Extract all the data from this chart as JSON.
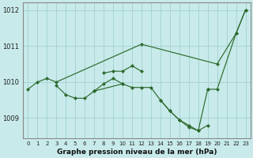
{
  "title": "Graphe pression niveau de la mer (hPa)",
  "bg_color": "#c8eaea",
  "line_color": "#2d6a2d",
  "grid_color": "#a8d4d4",
  "axis_color": "#888888",
  "xlim": [
    -0.5,
    23.5
  ],
  "ylim": [
    1008.45,
    1012.2
  ],
  "yticks": [
    1009,
    1010,
    1011,
    1012
  ],
  "xticks": [
    0,
    1,
    2,
    3,
    4,
    5,
    6,
    7,
    8,
    9,
    10,
    11,
    12,
    13,
    14,
    15,
    16,
    17,
    18,
    19,
    20,
    21,
    22,
    23
  ],
  "line1_x": [
    0,
    1,
    2,
    3,
    12,
    20,
    22,
    23
  ],
  "line1_y": [
    1009.8,
    1010.0,
    1010.1,
    1010.0,
    1011.05,
    1010.5,
    1011.35,
    1012.0
  ],
  "line2_x": [
    3,
    4,
    5,
    6,
    7,
    10,
    11,
    12,
    13,
    14,
    15,
    16,
    17,
    18,
    19
  ],
  "line2_y": [
    1009.9,
    1009.65,
    1009.55,
    1009.55,
    1009.75,
    1009.95,
    1009.85,
    1009.85,
    1009.85,
    1009.5,
    1009.2,
    1008.95,
    1008.8,
    1008.65,
    1009.8
  ],
  "line3_x": [
    7,
    8,
    9,
    10
  ],
  "line3_y": [
    1009.75,
    1009.95,
    1010.1,
    1009.95
  ],
  "line4_x": [
    8,
    9,
    10,
    11,
    12
  ],
  "line4_y": [
    1010.25,
    1010.3,
    1010.3,
    1010.45,
    1010.3
  ],
  "line5_x": [
    19,
    20,
    22,
    23
  ],
  "line5_y": [
    1009.8,
    1009.8,
    1011.35,
    1012.0
  ],
  "line6_x": [
    14,
    15,
    16,
    17,
    18,
    19
  ],
  "line6_y": [
    1009.5,
    1009.2,
    1008.95,
    1008.75,
    1008.65,
    1008.8
  ]
}
